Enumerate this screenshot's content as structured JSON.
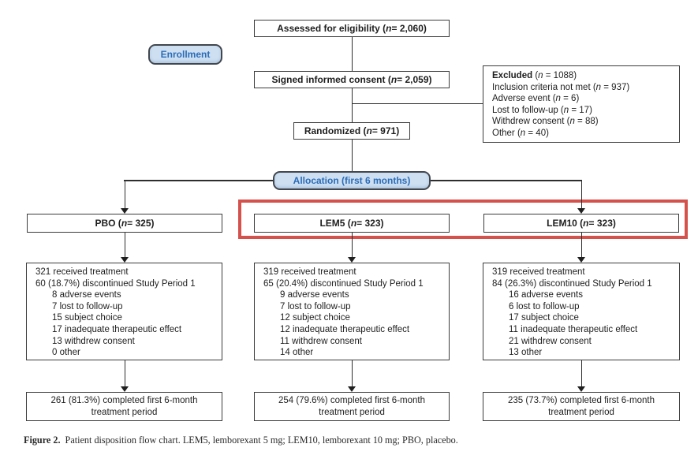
{
  "figure": {
    "label": "Figure 2.",
    "caption": "Patient disposition flow chart. LEM5, lemborexant 5 mg; LEM10, lemborexant 10 mg; PBO, placebo."
  },
  "colors": {
    "highlight_red": "#d5524c",
    "pill_fill": "#cddff1",
    "pill_text_blue": "#2b6cb8",
    "line_color": "#2e2e2e"
  },
  "flow": {
    "assessed": "Assessed for eligibility (n = 2,060)",
    "enrollment_tag": "Enrollment",
    "consent": "Signed informed consent (n = 2,059)",
    "excluded": {
      "label": "Excluded",
      "n": " (n = 1088)",
      "items": [
        "Inclusion criteria not met (n = 937)",
        "Adverse event (n = 6)",
        "Lost to follow-up (n = 17)",
        "Withdrew consent (n = 88)",
        "Other (n = 40)"
      ]
    },
    "randomized": "Randomized (n = 971)",
    "allocation_tag": "Allocation (first 6 months)",
    "arms": [
      {
        "name": "PBO",
        "header": "PBO (n = 325)",
        "received": "321 received treatment",
        "discontinued": "60 (18.7%) discontinued Study Period 1",
        "reasons": [
          "8 adverse events",
          "7 lost to follow-up",
          "15 subject choice",
          "17 inadequate therapeutic effect",
          "13 withdrew consent",
          "0 other"
        ],
        "completed": "261 (81.3%) completed first 6-month treatment period"
      },
      {
        "name": "LEM5",
        "header": "LEM5 (n = 323)",
        "received": "319 received treatment",
        "discontinued": "65 (20.4%) discontinued Study Period 1",
        "reasons": [
          "9 adverse events",
          "7 lost to follow-up",
          "12 subject choice",
          "12 inadequate therapeutic effect",
          "11 withdrew consent",
          "14 other"
        ],
        "completed": "254 (79.6%) completed first 6-month treatment period"
      },
      {
        "name": "LEM10",
        "header": "LEM10 (n = 323)",
        "received": "319 received treatment",
        "discontinued": "84 (26.3%) discontinued Study Period 1",
        "reasons": [
          "16 adverse events",
          "6 lost to follow-up",
          "17 subject choice",
          "11 inadequate therapeutic effect",
          "21 withdrew consent",
          "13 other"
        ],
        "completed": "235 (73.7%) completed first 6-month treatment period"
      }
    ]
  }
}
